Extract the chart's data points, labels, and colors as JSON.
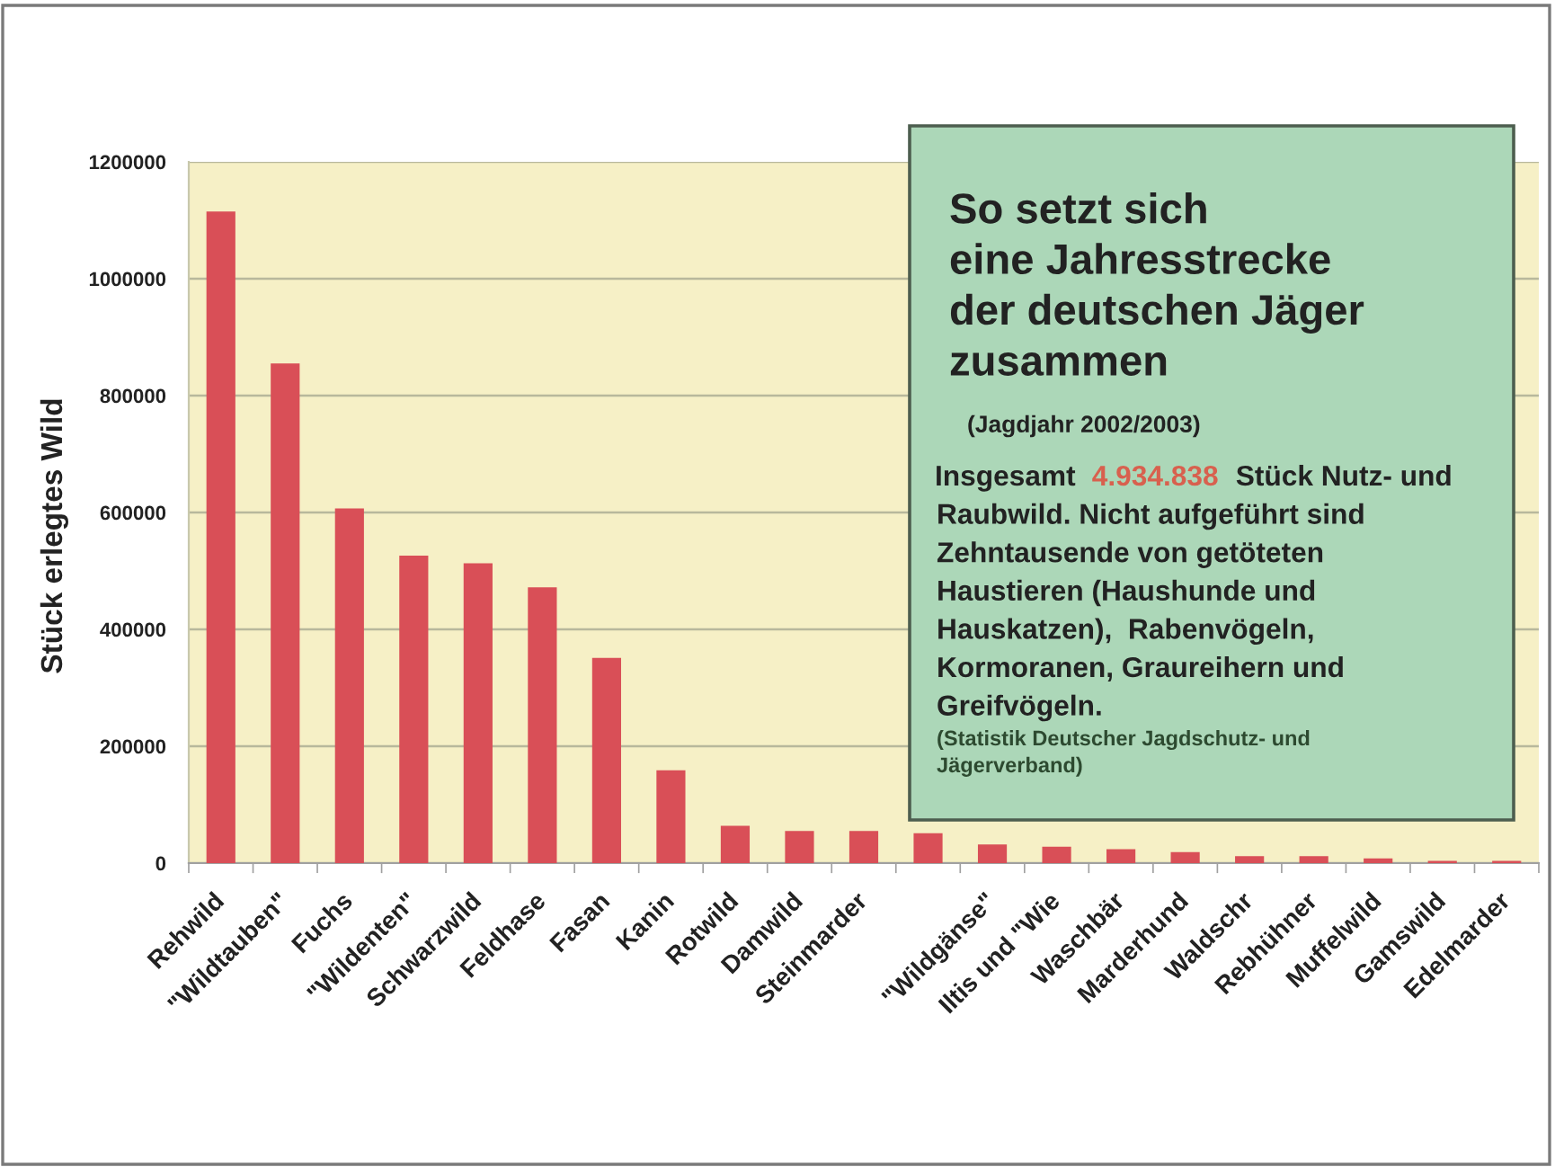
{
  "chart_data": {
    "type": "bar",
    "title": "So setzt sich\neine Jahresstrecke\nder deutschen Jäger\nzusammen",
    "subtitle": "(Jagdjahr 2002/2003)",
    "ylabel": "Stück erlegtes Wild",
    "categories": [
      "Rehwild",
      "\"Wildtauben\"",
      "Fuchs",
      "\"Wildenten\"",
      "Schwarzwild",
      "Feldhase",
      "Fasan",
      "Kanin",
      "Rotwild",
      "Damwild",
      "Steinmarder",
      null,
      "\"Wildgänse\"",
      "Iltis und \"Wie",
      "Waschbär",
      "Marderhund",
      "Waldschr",
      "Rebhühner",
      "Muffelwild",
      "Gamswild",
      "Edelmarder"
    ],
    "values": [
      1115000,
      855000,
      607000,
      526000,
      513000,
      472000,
      351000,
      159000,
      64000,
      55000,
      55000,
      51000,
      32000,
      28000,
      24000,
      19000,
      12000,
      12000,
      8000,
      4000,
      4000
    ],
    "color": "#d94f57",
    "ylim": [
      0,
      1200000
    ],
    "yticks": [
      0,
      200000,
      400000,
      600000,
      800000,
      1000000,
      1200000
    ],
    "grid": "y",
    "annotations": [
      "Insgesamt",
      "4.934.838",
      "Stück Nutz- und",
      "Raubwild. Nicht aufgeführt sind\nZehntausende von getöteten\nHaustieren (Haushunde und\nHauskatzen),  Rabenvögeln,\nKormoranen, Graureihern und\nGreifvögeln.",
      "(Statistik Deutscher Jagdschutz- und\nJägerverband)"
    ]
  }
}
